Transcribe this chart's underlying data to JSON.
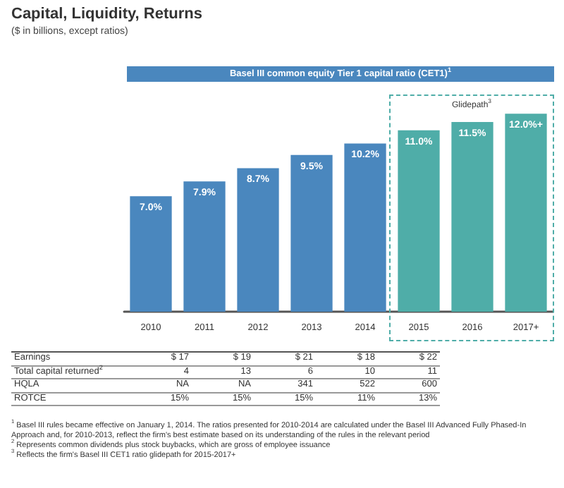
{
  "chart_data": [
    {
      "type": "bar",
      "title": "Capital, Liquidity, Returns",
      "subtitle": "($ in billions, except ratios)",
      "categories": [
        "2010",
        "2011",
        "2012",
        "2013",
        "2014",
        "2015",
        "2016",
        "2017+"
      ],
      "values": [
        7.0,
        7.9,
        8.7,
        9.5,
        10.2,
        11.0,
        11.5,
        12.0
      ],
      "colors": [
        "#4a87be",
        "#4a87be",
        "#4a87be",
        "#4a87be",
        "#4a87be",
        "#4fada8",
        "#4fada8",
        "#4fada8"
      ],
      "value_labels": [
        "7.0%",
        "7.9%",
        "8.7%",
        "9.5%",
        "10.2%",
        "11.0%",
        "11.5%",
        "12.0%+"
      ],
      "annotations": [
        "Basel III common equity Tier 1 capital ratio (CET1)$^{1}$",
        "Glidepath$^{3}$",
        "$^{1}$ Basel III rules became effective on January 1, 2014. The ratios presented for 2010-2014 are calculated under the Basel III Advanced Fully Phased-In Approach and, for 2010-2013, reflect the firm's best estimate based on its understanding of the rules in the relevant period",
        "$^{2}$ Represents common dividends plus stock buybacks, which are gross of employee issuance",
        "$^{3}$ Reflects the firm's Basel III CET1 ratio glidepath for 2015-2017+"
      ]
    },
    {
      "type": "other",
      "annotations": [
        "Earnings",
        "$ 17",
        "$ 19",
        "$ 21",
        "$ 18",
        "$ 22",
        "Total capital returned$^{2}$",
        "4",
        "13",
        "6",
        "10",
        "11",
        "HQLA",
        "NA",
        "NA",
        "341",
        "522",
        "600",
        "ROTCE",
        "15%",
        "15%",
        "15%",
        "11%",
        "13%"
      ]
    }
  ]
}
